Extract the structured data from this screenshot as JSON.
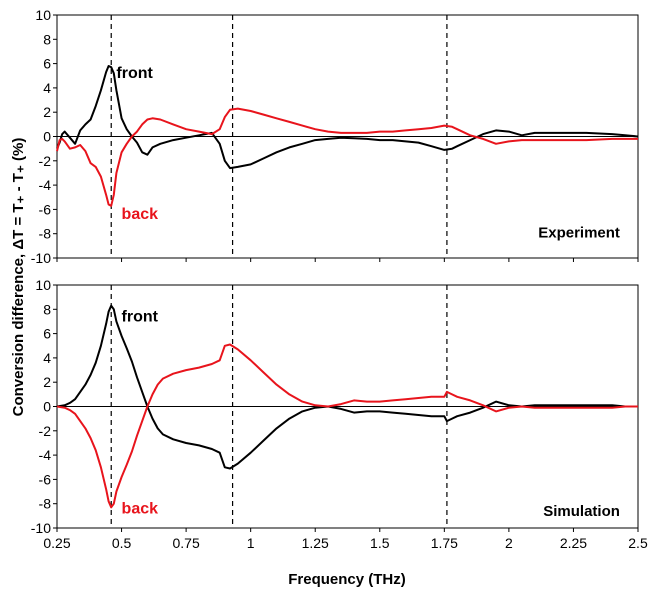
{
  "chart_data": {
    "type": "line",
    "xlabel": "Frequency (THz)",
    "ylabel": "Conversion difference,  ΔT = T₊ - T₊ (%)",
    "xlim": [
      0.25,
      2.5
    ],
    "x_ticks": [
      "0.25",
      "0.5",
      "0.75",
      "1",
      "1.25",
      "1.5",
      "1.75",
      "2",
      "2.25",
      "2.5"
    ],
    "y_ticks": [
      "10",
      "8",
      "6",
      "4",
      "2",
      "0",
      "-2",
      "-4",
      "-6",
      "-8",
      "-10"
    ],
    "ylim": [
      -10,
      10
    ],
    "vlines": [
      0.46,
      0.93,
      1.76
    ],
    "colors": {
      "front": "#000000",
      "back": "#e8141c"
    },
    "panels": [
      {
        "label": "Experiment",
        "series_labels": {
          "front": "front",
          "back": "back"
        },
        "series": [
          {
            "key": "front",
            "x": [
              0.25,
              0.26,
              0.27,
              0.28,
              0.3,
              0.32,
              0.34,
              0.36,
              0.38,
              0.4,
              0.42,
              0.44,
              0.45,
              0.46,
              0.47,
              0.48,
              0.5,
              0.52,
              0.54,
              0.56,
              0.58,
              0.6,
              0.62,
              0.65,
              0.7,
              0.75,
              0.8,
              0.85,
              0.88,
              0.9,
              0.92,
              0.95,
              1.0,
              1.05,
              1.1,
              1.15,
              1.2,
              1.25,
              1.3,
              1.35,
              1.4,
              1.45,
              1.5,
              1.55,
              1.6,
              1.65,
              1.7,
              1.75,
              1.78,
              1.8,
              1.85,
              1.9,
              1.95,
              2.0,
              2.05,
              2.1,
              2.2,
              2.3,
              2.4,
              2.45,
              2.5
            ],
            "y": [
              -1.0,
              -0.5,
              0.2,
              0.4,
              -0.1,
              -0.6,
              0.5,
              1.0,
              1.4,
              2.5,
              3.8,
              5.3,
              5.8,
              5.7,
              5.2,
              3.8,
              1.5,
              0.6,
              0.0,
              -0.5,
              -1.3,
              -1.5,
              -0.9,
              -0.6,
              -0.3,
              -0.1,
              0.1,
              0.3,
              -0.6,
              -2.0,
              -2.6,
              -2.5,
              -2.3,
              -1.8,
              -1.3,
              -0.9,
              -0.6,
              -0.3,
              -0.2,
              -0.1,
              -0.15,
              -0.2,
              -0.3,
              -0.3,
              -0.4,
              -0.5,
              -0.8,
              -1.1,
              -1.0,
              -0.8,
              -0.3,
              0.2,
              0.5,
              0.4,
              0.1,
              0.3,
              0.3,
              0.3,
              0.2,
              0.1,
              0.0
            ]
          },
          {
            "key": "back",
            "x": [
              0.25,
              0.26,
              0.27,
              0.28,
              0.3,
              0.32,
              0.34,
              0.36,
              0.38,
              0.4,
              0.42,
              0.44,
              0.45,
              0.46,
              0.47,
              0.48,
              0.5,
              0.52,
              0.54,
              0.56,
              0.58,
              0.6,
              0.62,
              0.65,
              0.7,
              0.75,
              0.8,
              0.85,
              0.88,
              0.9,
              0.92,
              0.95,
              1.0,
              1.05,
              1.1,
              1.15,
              1.2,
              1.25,
              1.3,
              1.35,
              1.4,
              1.45,
              1.5,
              1.55,
              1.6,
              1.65,
              1.7,
              1.75,
              1.78,
              1.8,
              1.85,
              1.9,
              1.95,
              2.0,
              2.05,
              2.1,
              2.2,
              2.3,
              2.4,
              2.45,
              2.5
            ],
            "y": [
              -1.2,
              -0.3,
              -0.2,
              -0.4,
              -1.0,
              -0.9,
              -0.7,
              -1.2,
              -2.2,
              -2.5,
              -3.3,
              -4.8,
              -5.6,
              -5.7,
              -4.8,
              -3.0,
              -1.3,
              -0.6,
              0.0,
              0.4,
              1.0,
              1.4,
              1.5,
              1.4,
              1.0,
              0.6,
              0.4,
              0.2,
              0.6,
              1.6,
              2.2,
              2.3,
              2.1,
              1.8,
              1.5,
              1.2,
              0.9,
              0.6,
              0.4,
              0.3,
              0.3,
              0.3,
              0.4,
              0.4,
              0.5,
              0.6,
              0.7,
              0.9,
              0.8,
              0.6,
              0.1,
              -0.2,
              -0.6,
              -0.4,
              -0.3,
              -0.3,
              -0.3,
              -0.3,
              -0.2,
              -0.2,
              -0.2
            ]
          }
        ]
      },
      {
        "label": "Simulation",
        "series_labels": {
          "front": "front",
          "back": "back"
        },
        "series": [
          {
            "key": "front",
            "x": [
              0.25,
              0.28,
              0.3,
              0.32,
              0.34,
              0.36,
              0.38,
              0.4,
              0.42,
              0.44,
              0.45,
              0.46,
              0.47,
              0.48,
              0.5,
              0.52,
              0.54,
              0.56,
              0.58,
              0.6,
              0.62,
              0.64,
              0.66,
              0.7,
              0.75,
              0.8,
              0.85,
              0.88,
              0.9,
              0.92,
              0.95,
              1.0,
              1.05,
              1.1,
              1.15,
              1.2,
              1.25,
              1.3,
              1.35,
              1.4,
              1.45,
              1.5,
              1.55,
              1.6,
              1.65,
              1.7,
              1.75,
              1.76,
              1.78,
              1.8,
              1.85,
              1.9,
              1.95,
              2.0,
              2.05,
              2.1,
              2.2,
              2.3,
              2.4,
              2.45,
              2.5
            ],
            "y": [
              0.0,
              0.1,
              0.3,
              0.6,
              1.2,
              1.8,
              2.6,
              3.6,
              5.0,
              6.8,
              7.8,
              8.3,
              8.0,
              7.0,
              5.8,
              4.8,
              3.7,
              2.4,
              1.2,
              0.0,
              -1.0,
              -1.8,
              -2.3,
              -2.7,
              -3.0,
              -3.2,
              -3.5,
              -3.8,
              -5.0,
              -5.1,
              -4.7,
              -3.8,
              -2.8,
              -1.8,
              -1.0,
              -0.4,
              -0.1,
              0.0,
              -0.2,
              -0.5,
              -0.4,
              -0.4,
              -0.5,
              -0.6,
              -0.7,
              -0.8,
              -0.8,
              -1.2,
              -1.0,
              -0.8,
              -0.5,
              -0.1,
              0.4,
              0.1,
              0.0,
              0.1,
              0.1,
              0.1,
              0.1,
              0.0,
              0.0
            ]
          },
          {
            "key": "back",
            "x": [
              0.25,
              0.28,
              0.3,
              0.32,
              0.34,
              0.36,
              0.38,
              0.4,
              0.42,
              0.44,
              0.45,
              0.46,
              0.47,
              0.48,
              0.5,
              0.52,
              0.54,
              0.56,
              0.58,
              0.6,
              0.62,
              0.64,
              0.66,
              0.7,
              0.75,
              0.8,
              0.85,
              0.88,
              0.9,
              0.92,
              0.95,
              1.0,
              1.05,
              1.1,
              1.15,
              1.2,
              1.25,
              1.3,
              1.35,
              1.4,
              1.45,
              1.5,
              1.55,
              1.6,
              1.65,
              1.7,
              1.75,
              1.76,
              1.78,
              1.8,
              1.85,
              1.9,
              1.95,
              2.0,
              2.05,
              2.1,
              2.2,
              2.3,
              2.4,
              2.45,
              2.5
            ],
            "y": [
              0.0,
              -0.1,
              -0.3,
              -0.6,
              -1.2,
              -1.8,
              -2.6,
              -3.6,
              -5.0,
              -6.8,
              -7.8,
              -8.3,
              -8.0,
              -7.0,
              -5.8,
              -4.8,
              -3.7,
              -2.4,
              -1.2,
              0.0,
              1.0,
              1.8,
              2.3,
              2.7,
              3.0,
              3.2,
              3.5,
              3.8,
              5.0,
              5.1,
              4.7,
              3.8,
              2.8,
              1.8,
              1.0,
              0.4,
              0.1,
              0.0,
              0.2,
              0.5,
              0.4,
              0.4,
              0.5,
              0.6,
              0.7,
              0.8,
              0.8,
              1.2,
              1.0,
              0.8,
              0.5,
              0.1,
              -0.4,
              -0.1,
              0.0,
              -0.1,
              -0.1,
              -0.1,
              -0.1,
              0.0,
              0.0
            ]
          }
        ]
      }
    ]
  }
}
